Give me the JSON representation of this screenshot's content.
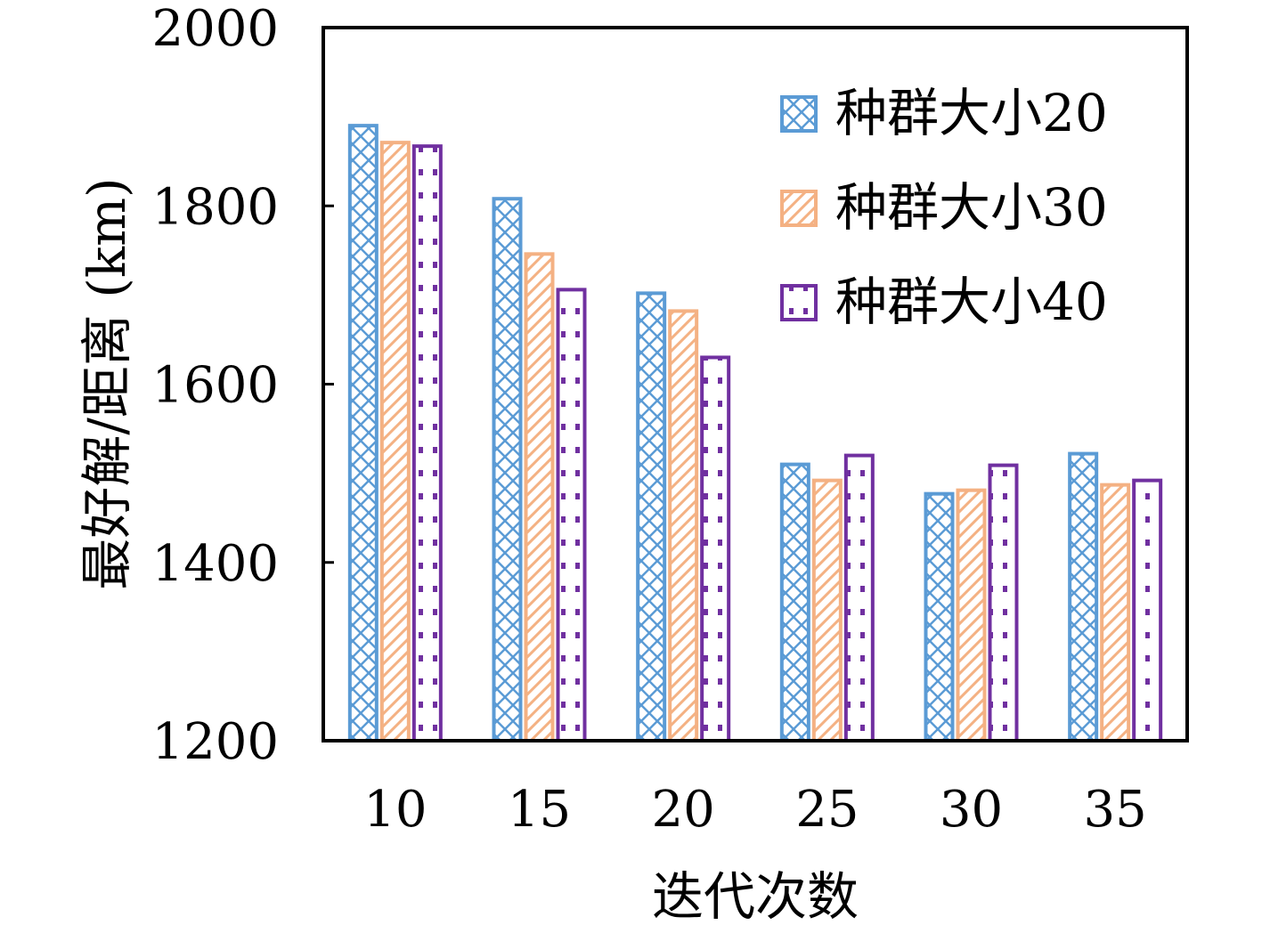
{
  "chart_data": {
    "type": "bar",
    "xlabel": "迭代次数",
    "ylabel": "最好解/距离 (km)",
    "categories": [
      "10",
      "15",
      "20",
      "25",
      "30",
      "35"
    ],
    "ylim": [
      1200,
      2000
    ],
    "yticks": [
      "1200",
      "1400",
      "1600",
      "1800",
      "2000"
    ],
    "grid": false,
    "legend_position": "top-right",
    "series": [
      {
        "name": "种群大小20",
        "color": "#5b9bd5",
        "pattern": "cross-hatch",
        "values": [
          1890,
          1808,
          1702,
          1510,
          1477,
          1522
        ]
      },
      {
        "name": "种群大小30",
        "color": "#f4b183",
        "pattern": "diagonal-checker",
        "values": [
          1871,
          1746,
          1682,
          1492,
          1481,
          1487
        ]
      },
      {
        "name": "种群大小40",
        "color": "#7030a0",
        "pattern": "dots",
        "values": [
          1867,
          1706,
          1630,
          1520,
          1509,
          1492
        ]
      }
    ]
  }
}
